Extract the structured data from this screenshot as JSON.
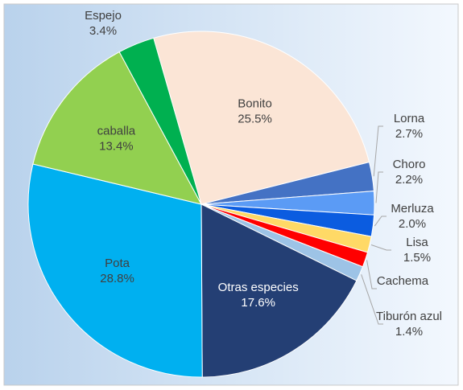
{
  "chart_data": {
    "type": "pie",
    "categories": [
      "Bonito",
      "Lorna",
      "Choro",
      "Merluza",
      "Lisa",
      "Cachema",
      "Tiburón azul",
      "Otras especies",
      "Pota",
      "caballa",
      "Espejo"
    ],
    "values": [
      25.5,
      2.7,
      2.2,
      2.0,
      1.5,
      1.4,
      1.4,
      17.6,
      28.8,
      13.4,
      3.4
    ],
    "value_labels": [
      "25.5%",
      "2.7%",
      "2.2%",
      "2.0%",
      "1.5%",
      null,
      "1.4%",
      "17.6%",
      "28.8%",
      "13.4%",
      "3.4%"
    ],
    "colors": [
      "#fbe5d6",
      "#4472c4",
      "#5b9bf5",
      "#0b5ce0",
      "#ffd966",
      "#ff0000",
      "#9dc3e6",
      "#243f74",
      "#00b0f0",
      "#92d050",
      "#00b050"
    ]
  }
}
